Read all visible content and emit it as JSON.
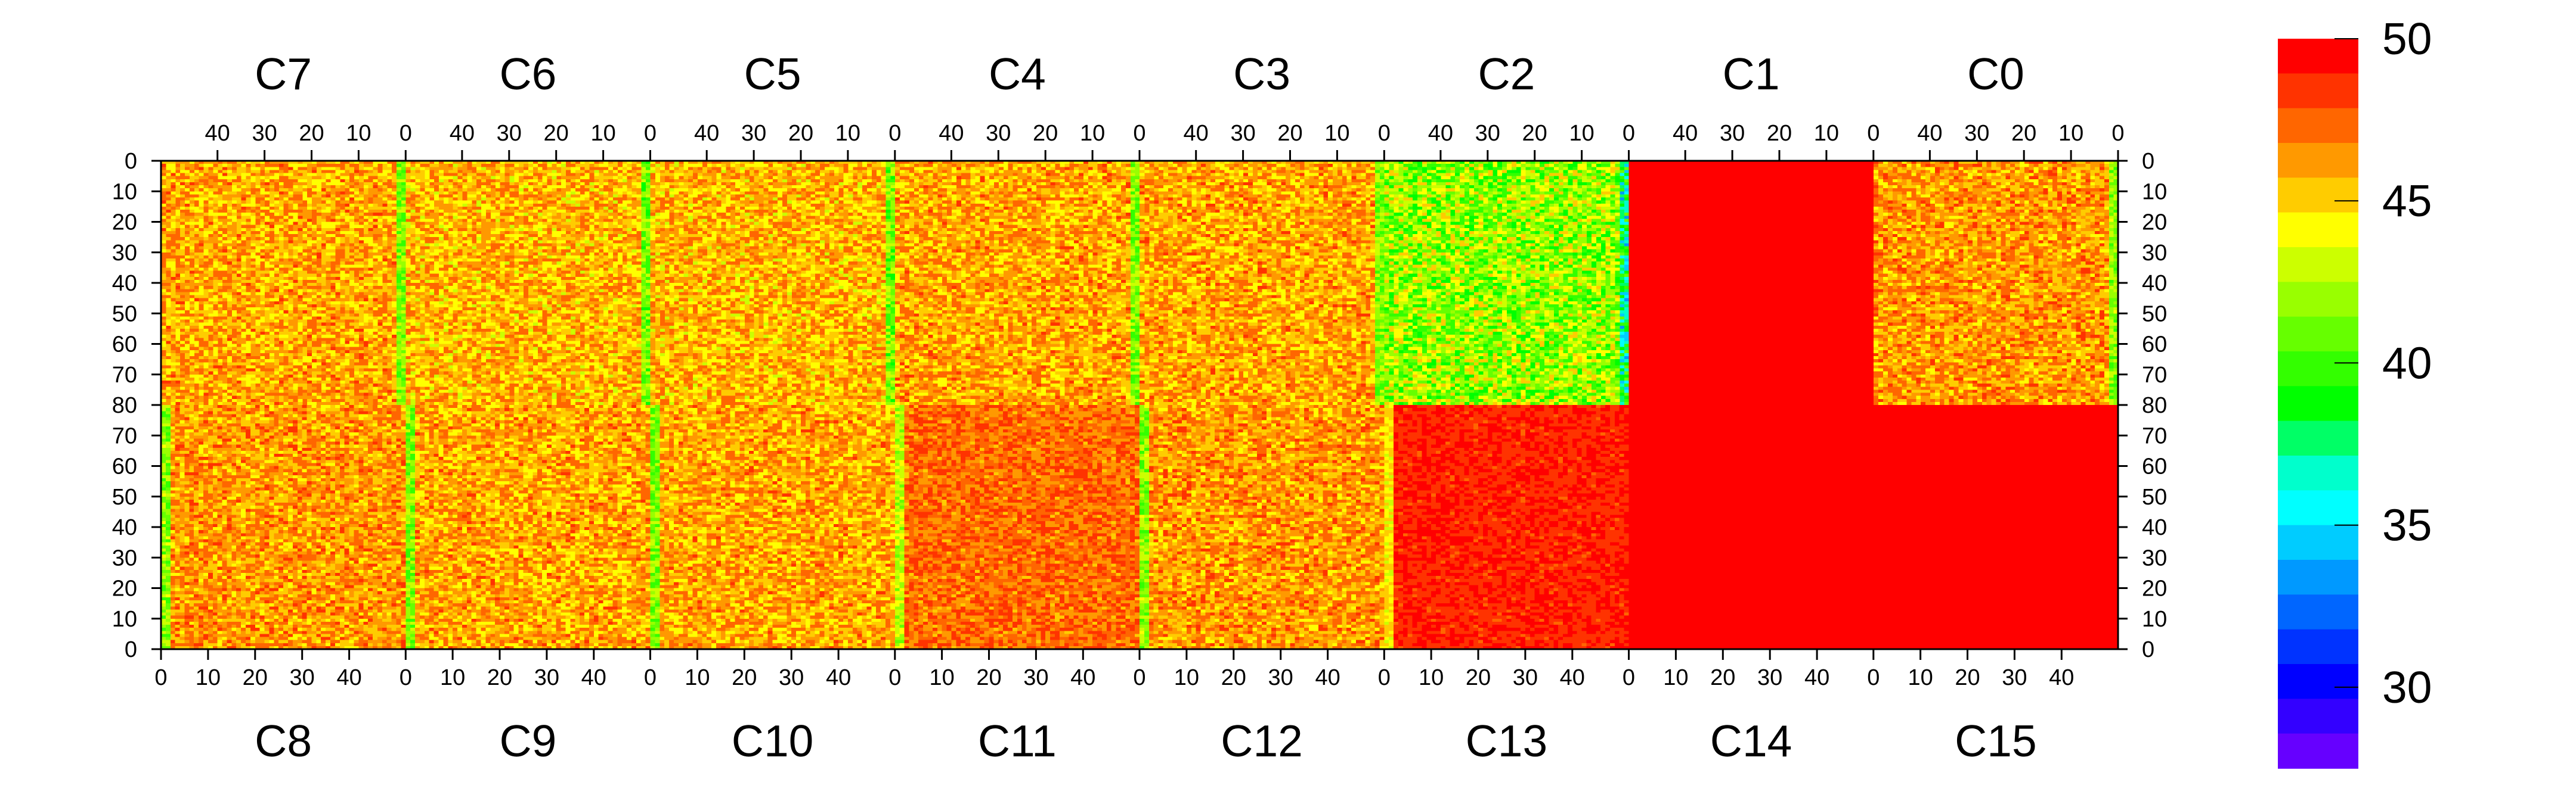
{
  "chart_data": {
    "type": "heatmap",
    "top_chips": [
      "C7",
      "C6",
      "C5",
      "C4",
      "C3",
      "C2",
      "C1",
      "C0"
    ],
    "bottom_chips": [
      "C8",
      "C9",
      "C10",
      "C11",
      "C12",
      "C13",
      "C14",
      "C15"
    ],
    "top_x_ticks": [
      "40",
      "30",
      "20",
      "10",
      "0"
    ],
    "top_x_tick_values": [
      40,
      30,
      20,
      10,
      0
    ],
    "top_end_tick": "0",
    "bottom_x_ticks": [
      "0",
      "10",
      "20",
      "30",
      "40"
    ],
    "bottom_x_tick_values": [
      0,
      10,
      20,
      30,
      40
    ],
    "upper_y_ticks": [
      "0",
      "10",
      "20",
      "30",
      "40",
      "50",
      "60",
      "70",
      "80"
    ],
    "upper_y_tick_values": [
      0,
      10,
      20,
      30,
      40,
      50,
      60,
      70,
      80
    ],
    "lower_y_ticks": [
      "80",
      "70",
      "60",
      "50",
      "40",
      "30",
      "20",
      "10",
      "0"
    ],
    "lower_y_tick_values": [
      80,
      70,
      60,
      50,
      40,
      30,
      20,
      10,
      0
    ],
    "chip_columns": 52,
    "chip_rows": 80,
    "zlim": [
      27.5,
      50
    ],
    "colorbar_ticks": [
      "50",
      "45",
      "40",
      "35",
      "30"
    ],
    "colorbar_tick_values": [
      50,
      45,
      40,
      35,
      30
    ],
    "colorbar_colors": [
      "#ff0000",
      "#ff3300",
      "#ff6600",
      "#ff9900",
      "#ffcc00",
      "#ffff00",
      "#ccff00",
      "#99ff00",
      "#66ff00",
      "#33ff00",
      "#00ff00",
      "#00ff66",
      "#00ffcc",
      "#00ffff",
      "#00ccff",
      "#0099ff",
      "#0066ff",
      "#0033ff",
      "#0000ff",
      "#3300ff",
      "#6600ff"
    ],
    "chip_mean_levels": {
      "C7": 48.0,
      "C6": 47.8,
      "C5": 47.8,
      "C4": 48.0,
      "C3": 48.0,
      "C2": 45.5,
      "C1": 50.0,
      "C0": 48.2,
      "C8": 48.2,
      "C9": 48.0,
      "C10": 48.0,
      "C11": 48.8,
      "C12": 48.2,
      "C13": 49.8,
      "C14": 50.0,
      "C15": 50.0
    }
  }
}
